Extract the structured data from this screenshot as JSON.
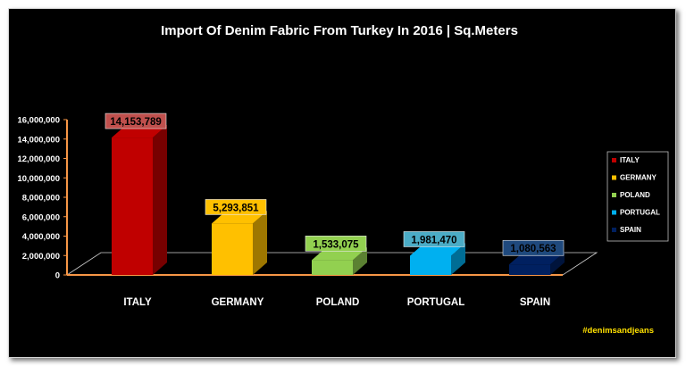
{
  "chart_data": {
    "type": "bar",
    "title": "Import Of Denim Fabric From Turkey In 2016 | Sq.Meters",
    "categories": [
      "ITALY",
      "GERMANY",
      "POLAND",
      "PORTUGAL",
      "SPAIN"
    ],
    "values": [
      14153789,
      5293851,
      1533075,
      1981470,
      1080563
    ],
    "data_labels": [
      "14,153,789",
      "5,293,851",
      "1,533,075",
      "1,981,470",
      "1,080,563"
    ],
    "colors": [
      "#c00000",
      "#ffc000",
      "#92d050",
      "#00b0f0",
      "#002060"
    ],
    "label_bg_colors": [
      "#c0504d",
      "#ffc000",
      "#92d050",
      "#4bacc6",
      "#1f497d"
    ],
    "ylim": [
      0,
      16000000
    ],
    "yticks": [
      0,
      2000000,
      4000000,
      6000000,
      8000000,
      10000000,
      12000000,
      14000000,
      16000000
    ],
    "ytick_labels": [
      "0",
      "2,000,000",
      "4,000,000",
      "6,000,000",
      "8,000,000",
      "10,000,000",
      "12,000,000",
      "14,000,000",
      "16,000,000"
    ],
    "grid": false,
    "legend_position": "right",
    "legend": [
      "ITALY",
      "GERMANY",
      "POLAND",
      "PORTUGAL",
      "SPAIN"
    ],
    "axis_color": "#f79646",
    "xlabel": "",
    "ylabel": ""
  },
  "watermark": "#denimsandjeans"
}
